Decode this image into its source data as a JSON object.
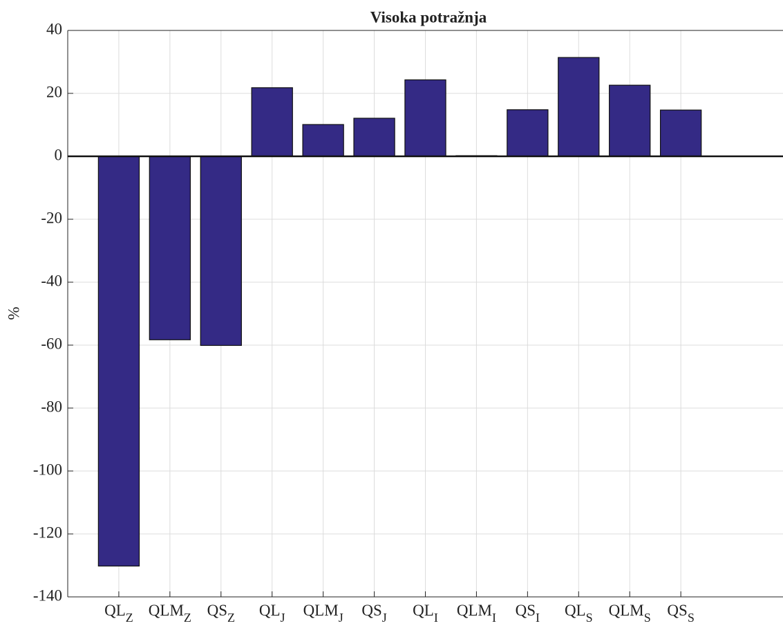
{
  "chart_data": {
    "type": "bar",
    "title": "Visoka potražnja",
    "y_label": "%",
    "categories": [
      [
        "QL",
        "Z"
      ],
      [
        "QLM",
        "Z"
      ],
      [
        "QS",
        "Z"
      ],
      [
        "QL",
        "J"
      ],
      [
        "QLM",
        "J"
      ],
      [
        "QS",
        "J"
      ],
      [
        "QL",
        "I"
      ],
      [
        "QLM",
        "I"
      ],
      [
        "QS",
        "I"
      ],
      [
        "QL",
        "S"
      ],
      [
        "QLM",
        "S"
      ],
      [
        "QS",
        "S"
      ]
    ],
    "values": [
      -130.2,
      -58.3,
      -60.1,
      21.8,
      10.1,
      12.1,
      24.3,
      0.2,
      14.8,
      31.4,
      22.6,
      14.7
    ],
    "color": "#342a85",
    "ylim": [
      -140,
      40
    ],
    "yticks": [
      -140,
      -120,
      -100,
      -80,
      -60,
      -40,
      -20,
      0,
      20,
      40
    ],
    "grid": true
  }
}
